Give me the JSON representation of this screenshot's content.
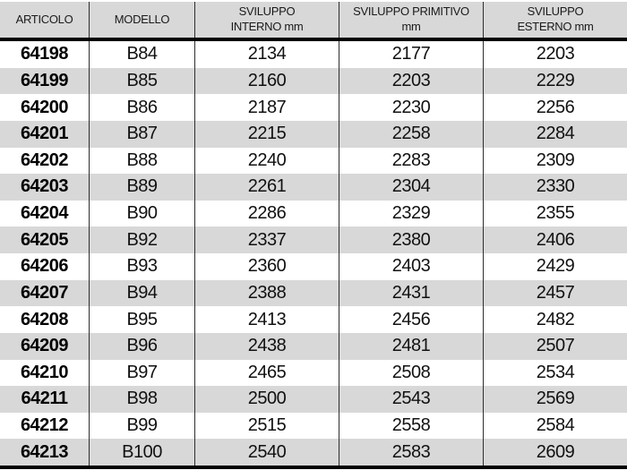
{
  "table": {
    "columns": [
      {
        "key": "articolo",
        "label": "ARTICOLO"
      },
      {
        "key": "modello",
        "label": "MODELLO"
      },
      {
        "key": "sviluppo_interno",
        "label": "SVILUPPO\nINTERNO mm"
      },
      {
        "key": "sviluppo_primitivo",
        "label": "SVILUPPO PRIMITIVO\nmm"
      },
      {
        "key": "sviluppo_esterno",
        "label": "SVILUPPO\nESTERNO mm"
      }
    ],
    "rows": [
      {
        "articolo": "64198",
        "modello": "B84",
        "sviluppo_interno": "2134",
        "sviluppo_primitivo": "2177",
        "sviluppo_esterno": "2203"
      },
      {
        "articolo": "64199",
        "modello": "B85",
        "sviluppo_interno": "2160",
        "sviluppo_primitivo": "2203",
        "sviluppo_esterno": "2229"
      },
      {
        "articolo": "64200",
        "modello": "B86",
        "sviluppo_interno": "2187",
        "sviluppo_primitivo": "2230",
        "sviluppo_esterno": "2256"
      },
      {
        "articolo": "64201",
        "modello": "B87",
        "sviluppo_interno": "2215",
        "sviluppo_primitivo": "2258",
        "sviluppo_esterno": "2284"
      },
      {
        "articolo": "64202",
        "modello": "B88",
        "sviluppo_interno": "2240",
        "sviluppo_primitivo": "2283",
        "sviluppo_esterno": "2309"
      },
      {
        "articolo": "64203",
        "modello": "B89",
        "sviluppo_interno": "2261",
        "sviluppo_primitivo": "2304",
        "sviluppo_esterno": "2330"
      },
      {
        "articolo": "64204",
        "modello": "B90",
        "sviluppo_interno": "2286",
        "sviluppo_primitivo": "2329",
        "sviluppo_esterno": "2355"
      },
      {
        "articolo": "64205",
        "modello": "B92",
        "sviluppo_interno": "2337",
        "sviluppo_primitivo": "2380",
        "sviluppo_esterno": "2406"
      },
      {
        "articolo": "64206",
        "modello": "B93",
        "sviluppo_interno": "2360",
        "sviluppo_primitivo": "2403",
        "sviluppo_esterno": "2429"
      },
      {
        "articolo": "64207",
        "modello": "B94",
        "sviluppo_interno": "2388",
        "sviluppo_primitivo": "2431",
        "sviluppo_esterno": "2457"
      },
      {
        "articolo": "64208",
        "modello": "B95",
        "sviluppo_interno": "2413",
        "sviluppo_primitivo": "2456",
        "sviluppo_esterno": "2482"
      },
      {
        "articolo": "64209",
        "modello": "B96",
        "sviluppo_interno": "2438",
        "sviluppo_primitivo": "2481",
        "sviluppo_esterno": "2507"
      },
      {
        "articolo": "64210",
        "modello": "B97",
        "sviluppo_interno": "2465",
        "sviluppo_primitivo": "2508",
        "sviluppo_esterno": "2534"
      },
      {
        "articolo": "64211",
        "modello": "B98",
        "sviluppo_interno": "2500",
        "sviluppo_primitivo": "2543",
        "sviluppo_esterno": "2569"
      },
      {
        "articolo": "64212",
        "modello": "B99",
        "sviluppo_interno": "2515",
        "sviluppo_primitivo": "2558",
        "sviluppo_esterno": "2584"
      },
      {
        "articolo": "64213",
        "modello": "B100",
        "sviluppo_interno": "2540",
        "sviluppo_primitivo": "2583",
        "sviluppo_esterno": "2609"
      }
    ]
  },
  "colors": {
    "header_bg": "#d8d8d8",
    "row_bg": "#ffffff",
    "row_alt_bg": "#d8d8d8",
    "thick_rule": "#000000",
    "column_separator": "#2e2e2e",
    "text": "#111111"
  }
}
